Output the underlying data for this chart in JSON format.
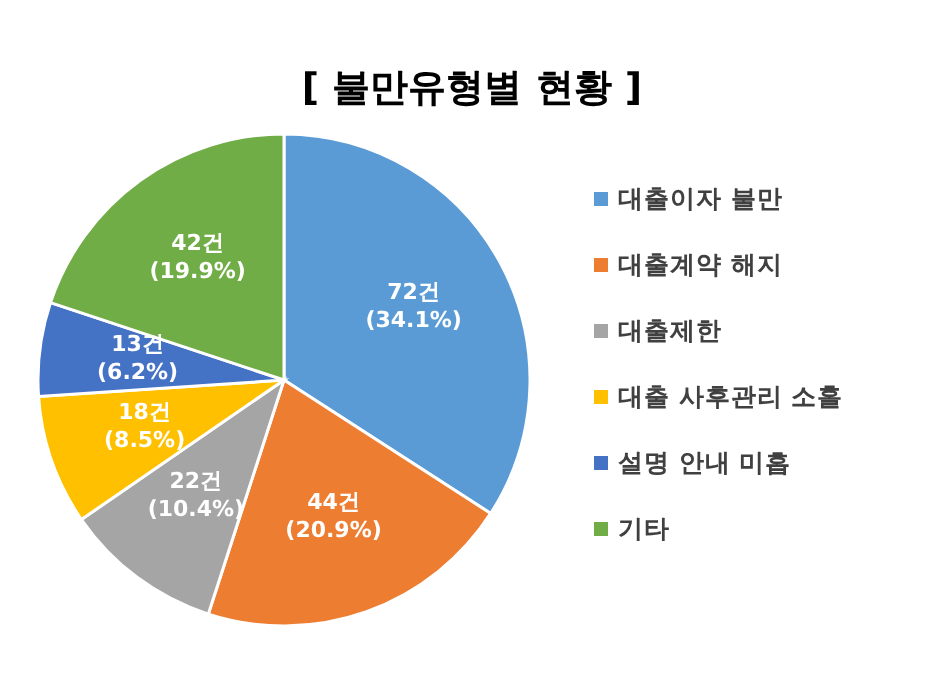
{
  "chart_data": {
    "type": "pie",
    "title": "[ 불만유형별 현황 ]",
    "categories": [
      "대출이자 불만",
      "대출계약 해지",
      "대출제한",
      "대출 사후관리 소홀",
      "설명 안내 미흡",
      "기타"
    ],
    "values": [
      72,
      44,
      22,
      18,
      13,
      42
    ],
    "colors": [
      "#5b9bd5",
      "#ed7d31",
      "#a5a5a5",
      "#ffc000",
      "#4472c4",
      "#70ad47"
    ],
    "value_labels": [
      "72건\n(34.1%)",
      "44건\n(20.9%)",
      "22건\n(10.4%)",
      "18건\n(8.5%)",
      "13건\n(6.2%)",
      "42건\n(19.9%)"
    ],
    "legend": "right"
  }
}
